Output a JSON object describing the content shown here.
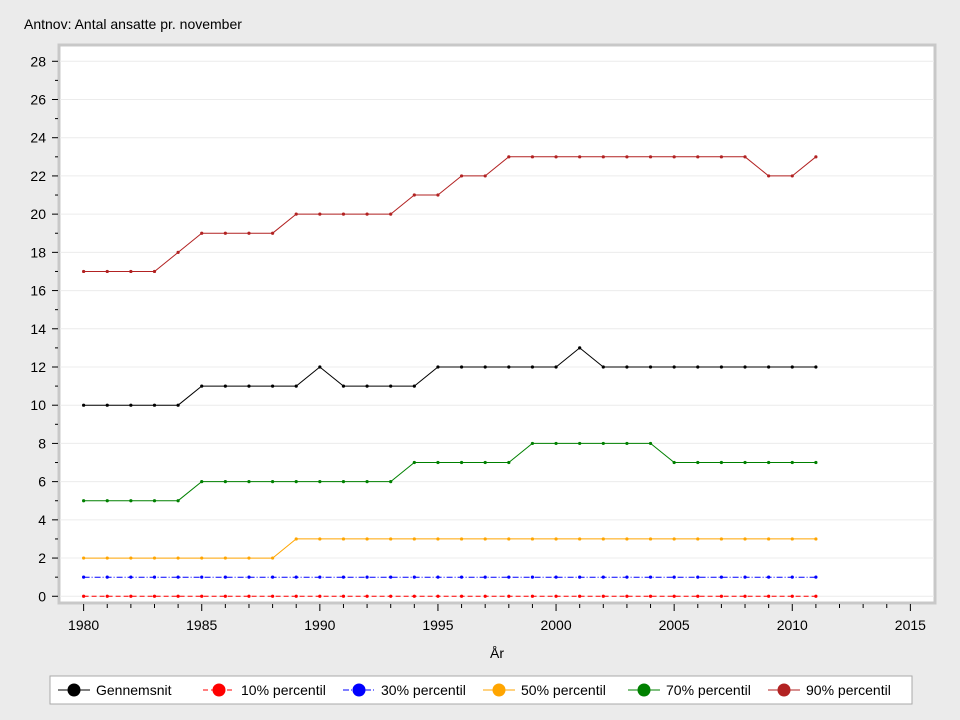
{
  "chart_data": {
    "type": "line",
    "title": "Antnov: Antal ansatte pr. november",
    "xlabel": "År",
    "ylabel": "",
    "xlim": [
      1979.0,
      2016.0
    ],
    "ylim": [
      -0.3,
      28.8
    ],
    "xticks": [
      1980,
      1985,
      1990,
      1995,
      2000,
      2005,
      2010,
      2015
    ],
    "yticks": [
      0,
      2,
      4,
      6,
      8,
      10,
      12,
      14,
      16,
      18,
      20,
      22,
      24,
      26,
      28
    ],
    "grid": true,
    "legend_position": "bottom",
    "x": [
      1980,
      1981,
      1982,
      1983,
      1984,
      1985,
      1986,
      1987,
      1988,
      1989,
      1990,
      1991,
      1992,
      1993,
      1994,
      1995,
      1996,
      1997,
      1998,
      1999,
      2000,
      2001,
      2002,
      2003,
      2004,
      2005,
      2006,
      2007,
      2008,
      2009,
      2010,
      2011
    ],
    "series": [
      {
        "name": "Gennemsnit",
        "color": "#000000",
        "dash": "solid",
        "values": [
          10,
          10,
          10,
          10,
          10,
          11,
          11,
          11,
          11,
          11,
          12,
          11,
          11,
          11,
          11,
          12,
          12,
          12,
          12,
          12,
          12,
          13,
          12,
          12,
          12,
          12,
          12,
          12,
          12,
          12,
          12,
          12
        ]
      },
      {
        "name": "10% percentil",
        "color": "#ff0000",
        "dash": "dash",
        "values": [
          0,
          0,
          0,
          0,
          0,
          0,
          0,
          0,
          0,
          0,
          0,
          0,
          0,
          0,
          0,
          0,
          0,
          0,
          0,
          0,
          0,
          0,
          0,
          0,
          0,
          0,
          0,
          0,
          0,
          0,
          0,
          0
        ]
      },
      {
        "name": "30% percentil",
        "color": "#0000ff",
        "dash": "dashdot",
        "values": [
          1,
          1,
          1,
          1,
          1,
          1,
          1,
          1,
          1,
          1,
          1,
          1,
          1,
          1,
          1,
          1,
          1,
          1,
          1,
          1,
          1,
          1,
          1,
          1,
          1,
          1,
          1,
          1,
          1,
          1,
          1,
          1
        ]
      },
      {
        "name": "50% percentil",
        "color": "#ffa500",
        "dash": "solid",
        "values": [
          2,
          2,
          2,
          2,
          2,
          2,
          2,
          2,
          2,
          3,
          3,
          3,
          3,
          3,
          3,
          3,
          3,
          3,
          3,
          3,
          3,
          3,
          3,
          3,
          3,
          3,
          3,
          3,
          3,
          3,
          3,
          3
        ]
      },
      {
        "name": "70% percentil",
        "color": "#008000",
        "dash": "solid",
        "values": [
          5,
          5,
          5,
          5,
          5,
          6,
          6,
          6,
          6,
          6,
          6,
          6,
          6,
          6,
          7,
          7,
          7,
          7,
          7,
          8,
          8,
          8,
          8,
          8,
          8,
          7,
          7,
          7,
          7,
          7,
          7,
          7
        ]
      },
      {
        "name": "90% percentil",
        "color": "#b22222",
        "dash": "solid",
        "values": [
          17,
          17,
          17,
          17,
          18,
          19,
          19,
          19,
          19,
          20,
          20,
          20,
          20,
          20,
          21,
          21,
          22,
          22,
          23,
          23,
          23,
          23,
          23,
          23,
          23,
          23,
          23,
          23,
          23,
          22,
          22,
          23
        ]
      }
    ]
  }
}
